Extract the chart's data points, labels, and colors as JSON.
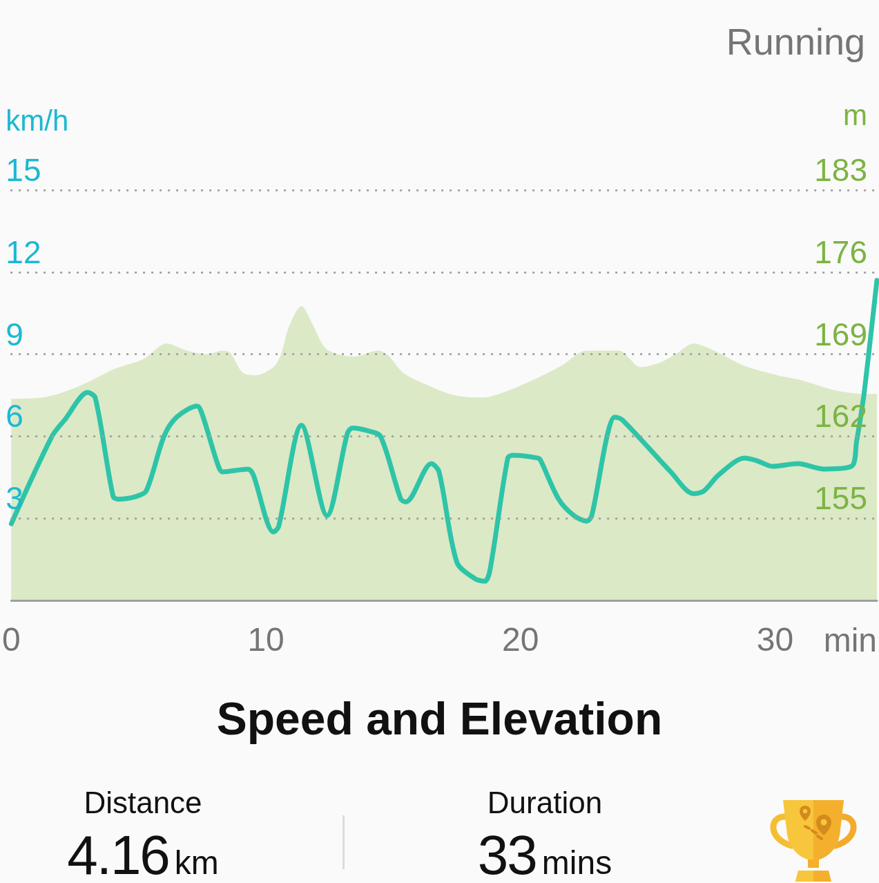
{
  "chart_data": [
    {
      "type": "line",
      "title": "Speed and Elevation",
      "xlabel": "min",
      "ylabel": "km/h",
      "y2label": "m",
      "annotations": [
        "Running"
      ],
      "xlim": [
        0,
        34
      ],
      "xticks": [
        0,
        10,
        20,
        30
      ],
      "ylim": [
        0,
        15
      ],
      "yticks": [
        3,
        6,
        9,
        12,
        15
      ],
      "y2lim": [
        148,
        183
      ],
      "y2ticks": [
        155,
        162,
        169,
        176,
        183
      ],
      "grid": "y",
      "marker": "none",
      "series": [
        {
          "type": "area",
          "axis": "y2",
          "color": "#dbe9c6",
          "x": [
            0,
            1.2,
            2.1,
            3.0,
            4.0,
            5.2,
            6.1,
            6.9,
            7.7,
            8.3,
            8.6,
            9.1,
            9.6,
            10.3,
            10.6,
            10.9,
            11.4,
            11.8,
            12.3,
            12.8,
            13.5,
            14.4,
            14.8,
            15.4,
            16.3,
            17.4,
            18.5,
            19.4,
            20.7,
            21.6,
            22.6,
            23.9,
            24.2,
            24.7,
            25.5,
            26.1,
            26.8,
            27.6,
            28.8,
            30.1,
            31.0,
            32.4,
            33.6,
            34.0
          ],
          "values": [
            165.2,
            165.3,
            165.8,
            166.6,
            167.7,
            168.6,
            169.9,
            169.3,
            169.0,
            169.3,
            169.1,
            167.4,
            167.2,
            167.9,
            169.0,
            171.3,
            173.1,
            171.7,
            169.6,
            169.0,
            168.8,
            169.3,
            168.9,
            167.4,
            166.4,
            165.5,
            165.3,
            165.8,
            167.0,
            168.0,
            169.3,
            169.3,
            168.8,
            167.9,
            168.3,
            169.0,
            169.9,
            169.3,
            168.0,
            167.2,
            166.8,
            165.9,
            165.6,
            165.6
          ]
        },
        {
          "type": "line",
          "color": "#2ec4a8",
          "x": [
            0,
            1.6,
            2.1,
            3.0,
            3.3,
            4.0,
            4.2,
            4.9,
            5.3,
            6.0,
            6.5,
            7.3,
            7.5,
            8.1,
            8.3,
            9.3,
            9.5,
            10.3,
            10.5,
            11.4,
            12.4,
            13.2,
            13.4,
            14.0,
            14.5,
            15.3,
            15.5,
            16.5,
            16.8,
            17.5,
            18.2,
            18.6,
            18.8,
            19.5,
            19.7,
            20.7,
            20.8,
            21.5,
            22.1,
            22.6,
            22.8,
            23.4,
            23.7,
            24.0,
            25.9,
            26.8,
            27.2,
            27.8,
            28.8,
            29.3,
            29.9,
            30.9,
            31.9,
            33.0,
            33.2,
            33.5,
            34.0
          ],
          "values": [
            2.8,
            6.0,
            6.6,
            7.6,
            7.4,
            3.8,
            3.7,
            3.8,
            4.0,
            6.0,
            6.7,
            7.1,
            6.8,
            5.0,
            4.7,
            4.8,
            4.6,
            2.5,
            2.7,
            6.4,
            3.1,
            6.1,
            6.3,
            6.2,
            6.0,
            3.7,
            3.6,
            5.0,
            4.7,
            1.4,
            0.8,
            0.7,
            1.1,
            5.2,
            5.3,
            5.2,
            5.1,
            3.7,
            3.1,
            2.9,
            3.1,
            6.0,
            6.7,
            6.6,
            4.7,
            3.9,
            4.0,
            4.6,
            5.2,
            5.1,
            4.9,
            5.0,
            4.8,
            4.9,
            5.8,
            7.6,
            11.7
          ]
        }
      ]
    },
    {
      "type": "other",
      "annotations": [
        "Distance",
        "4.16",
        "km",
        "Duration",
        "33",
        "mins"
      ]
    }
  ]
}
